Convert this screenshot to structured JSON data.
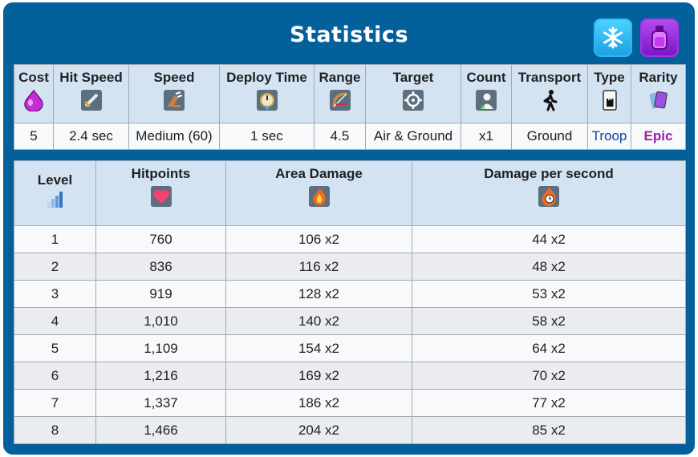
{
  "title": "Statistics",
  "icons": {
    "header_left": "ice-icon",
    "header_right": "elixir-bottle-icon"
  },
  "stats_table": {
    "headers": [
      {
        "label": "Cost",
        "icon": "elixir-drop-icon"
      },
      {
        "label": "Hit Speed",
        "icon": "sword-icon"
      },
      {
        "label": "Speed",
        "icon": "boot-icon"
      },
      {
        "label": "Deploy Time",
        "icon": "stopwatch-icon"
      },
      {
        "label": "Range",
        "icon": "bow-icon"
      },
      {
        "label": "Target",
        "icon": "crosshair-icon"
      },
      {
        "label": "Count",
        "icon": "unit-count-icon"
      },
      {
        "label": "Transport",
        "icon": "walking-person-icon"
      },
      {
        "label": "Type",
        "icon": "card-icon"
      },
      {
        "label": "Rarity",
        "icon": "cards-icon"
      }
    ],
    "values": [
      "5",
      "2.4 sec",
      "Medium (60)",
      "1 sec",
      "4.5",
      "Air & Ground",
      "x1",
      "Ground",
      "Troop",
      "Epic"
    ]
  },
  "level_table": {
    "headers": [
      {
        "label": "Level",
        "icon": "level-bars-icon"
      },
      {
        "label": "Hitpoints",
        "icon": "heart-icon"
      },
      {
        "label": "Area Damage",
        "icon": "flame-icon"
      },
      {
        "label": "Damage per second",
        "icon": "flame-clock-icon"
      }
    ],
    "rows": [
      [
        "1",
        "760",
        "106 x2",
        "44 x2"
      ],
      [
        "2",
        "836",
        "116 x2",
        "48 x2"
      ],
      [
        "3",
        "919",
        "128 x2",
        "53 x2"
      ],
      [
        "4",
        "1,010",
        "140 x2",
        "58 x2"
      ],
      [
        "5",
        "1,109",
        "154 x2",
        "64 x2"
      ],
      [
        "6",
        "1,216",
        "169 x2",
        "70 x2"
      ],
      [
        "7",
        "1,337",
        "186 x2",
        "77 x2"
      ],
      [
        "8",
        "1,466",
        "204 x2",
        "85 x2"
      ]
    ]
  },
  "colors": {
    "panel": "#04609a",
    "header_bg": "#d4e3f1",
    "troop": "#0645ad",
    "epic": "#9b1ea8"
  }
}
